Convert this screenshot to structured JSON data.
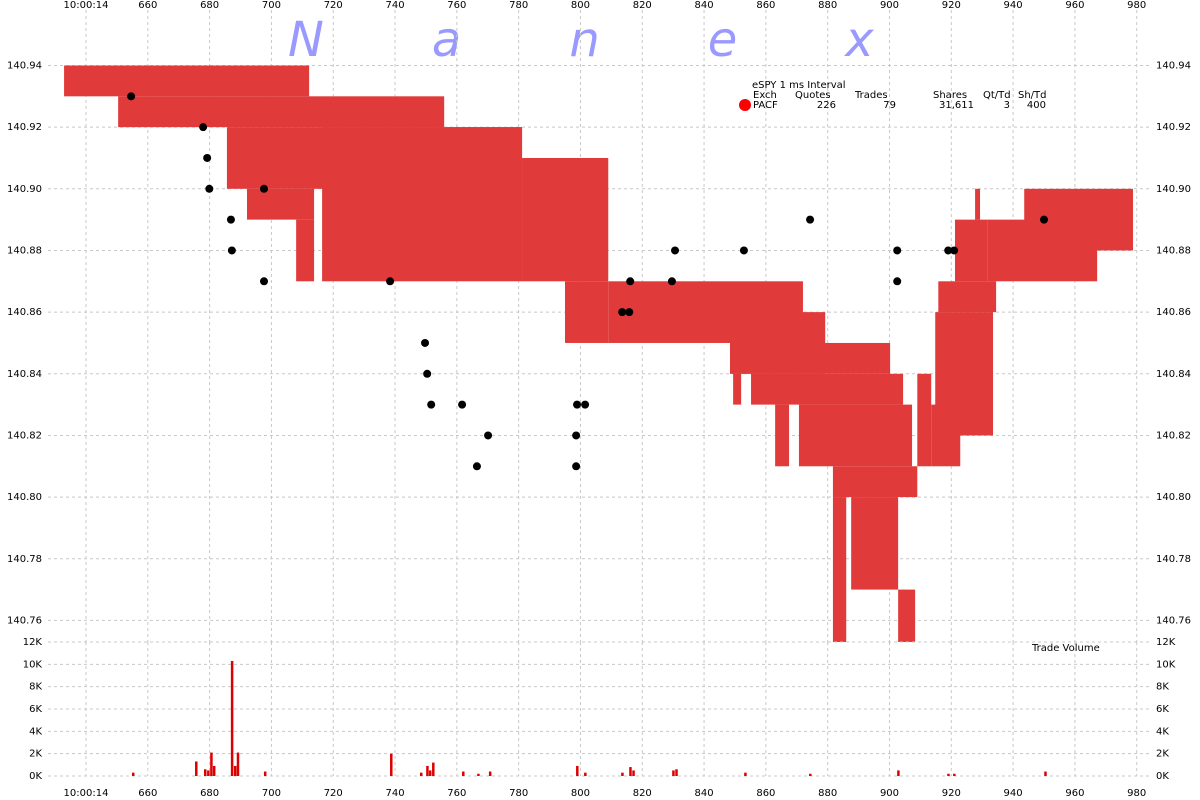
{
  "chart_data": [
    {
      "type": "quotes-trades",
      "watermark": "Nanex",
      "legend": {
        "title": "eSPY 1 ms Interval",
        "headers": [
          "Exch",
          "Quotes",
          "Trades",
          "Shares",
          "Qt/Td",
          "Sh/Td"
        ],
        "rows": [
          [
            "PACF",
            "226",
            "79",
            "31,611",
            "3",
            "400"
          ]
        ],
        "marker_color": "#ff0000"
      },
      "xlim": [
        627.7,
        984.3
      ],
      "xticks": [
        {
          "value": 640,
          "label": "10:00:14"
        },
        660,
        680,
        700,
        720,
        740,
        760,
        780,
        800,
        820,
        840,
        860,
        880,
        900,
        920,
        940,
        960,
        980
      ],
      "ylim": [
        140.753,
        140.958
      ],
      "yticks": [
        {
          "value": 140.76,
          "label": "140.76"
        },
        140.78,
        {
          "value": 140.8,
          "label": "140.80"
        },
        140.82,
        140.84,
        140.86,
        140.88,
        {
          "value": 140.9,
          "label": "140.90"
        },
        140.92,
        140.94
      ],
      "grid": true,
      "quote_color": "#e03a3a",
      "quote_start": [
        632.9,
        650.4,
        685.6,
        692.1,
        708.0,
        716.4,
        781.1,
        795.0,
        809.0,
        848.4,
        848.4,
        849.4,
        855.2,
        863.0,
        870.7,
        881.7,
        881.7,
        887.6,
        902.8,
        909.0,
        913.5,
        914.8,
        915.8,
        921.2,
        927.7,
        931.6,
        943.6
      ],
      "quote_end": [
        712.2,
        755.9,
        781.1,
        713.8,
        713.8,
        781.1,
        809.0,
        809.0,
        872.0,
        879.2,
        900.2,
        852.0,
        904.4,
        867.5,
        907.3,
        909.0,
        886.0,
        902.8,
        908.3,
        913.5,
        922.9,
        933.5,
        934.5,
        931.6,
        929.3,
        967.2,
        978.8
      ],
      "quote_low": [
        140.93,
        140.92,
        140.9,
        140.89,
        140.87,
        140.87,
        140.87,
        140.85,
        140.85,
        140.84,
        140.84,
        140.83,
        140.83,
        140.81,
        140.81,
        140.8,
        140.753,
        140.77,
        140.753,
        140.81,
        140.81,
        140.82,
        140.86,
        140.87,
        140.89,
        140.87,
        140.88
      ],
      "quote_high": [
        140.94,
        140.93,
        140.92,
        140.9,
        140.89,
        140.92,
        140.91,
        140.87,
        140.87,
        140.86,
        140.85,
        140.84,
        140.84,
        140.83,
        140.83,
        140.81,
        140.8,
        140.8,
        140.77,
        140.84,
        140.83,
        140.86,
        140.87,
        140.89,
        140.9,
        140.89,
        140.9
      ],
      "trade_color": "#000000",
      "trade_x": [
        654.6,
        677.9,
        679.2,
        679.9,
        686.9,
        687.2,
        697.6,
        697.6,
        738.4,
        749.7,
        750.4,
        751.7,
        761.7,
        766.5,
        770.1,
        798.6,
        798.9,
        801.5,
        798.6,
        813.5,
        815.8,
        816.1,
        829.6,
        830.6,
        852.9,
        874.3,
        902.5,
        902.5,
        919.0,
        920.9,
        950.0
      ],
      "trade_price": [
        140.93,
        140.92,
        140.91,
        140.9,
        140.89,
        140.88,
        140.9,
        140.87,
        140.87,
        140.85,
        140.84,
        140.83,
        140.83,
        140.81,
        140.82,
        140.82,
        140.83,
        140.83,
        140.81,
        140.86,
        140.86,
        140.87,
        140.87,
        140.88,
        140.88,
        140.89,
        140.88,
        140.87,
        140.88,
        140.88,
        140.89
      ]
    },
    {
      "type": "bar",
      "title": "Trade Volume",
      "color": "#dd0000",
      "xlim": [
        627.7,
        984.3
      ],
      "xticks": [
        {
          "value": 640,
          "label": "10:00:14"
        },
        660,
        680,
        700,
        720,
        740,
        760,
        780,
        800,
        820,
        840,
        860,
        880,
        900,
        920,
        940,
        960,
        980
      ],
      "ylim": [
        0,
        12000
      ],
      "yticks": [
        {
          "value": 0,
          "label": "0K"
        },
        {
          "value": 2000,
          "label": "2K"
        },
        {
          "value": 4000,
          "label": "4K"
        },
        {
          "value": 6000,
          "label": "6K"
        },
        {
          "value": 8000,
          "label": "8K"
        },
        {
          "value": 10000,
          "label": "10K"
        },
        {
          "value": 12000,
          "label": "12K"
        }
      ],
      "grid": true,
      "x": [
        655.2,
        675.6,
        678.5,
        679.5,
        680.5,
        681.4,
        687.2,
        688.2,
        689.1,
        697.9,
        738.7,
        748.4,
        750.4,
        751.3,
        752.3,
        762.0,
        766.9,
        770.7,
        798.9,
        801.5,
        813.5,
        816.1,
        817.1,
        830.0,
        831.0,
        853.3,
        874.3,
        902.8,
        919.0,
        920.9,
        950.4
      ],
      "values": [
        300,
        1300,
        600,
        500,
        2100,
        900,
        10300,
        900,
        2100,
        400,
        2000,
        300,
        900,
        500,
        1200,
        400,
        200,
        400,
        900,
        300,
        300,
        800,
        500,
        500,
        600,
        300,
        200,
        500,
        200,
        200,
        400
      ]
    }
  ]
}
